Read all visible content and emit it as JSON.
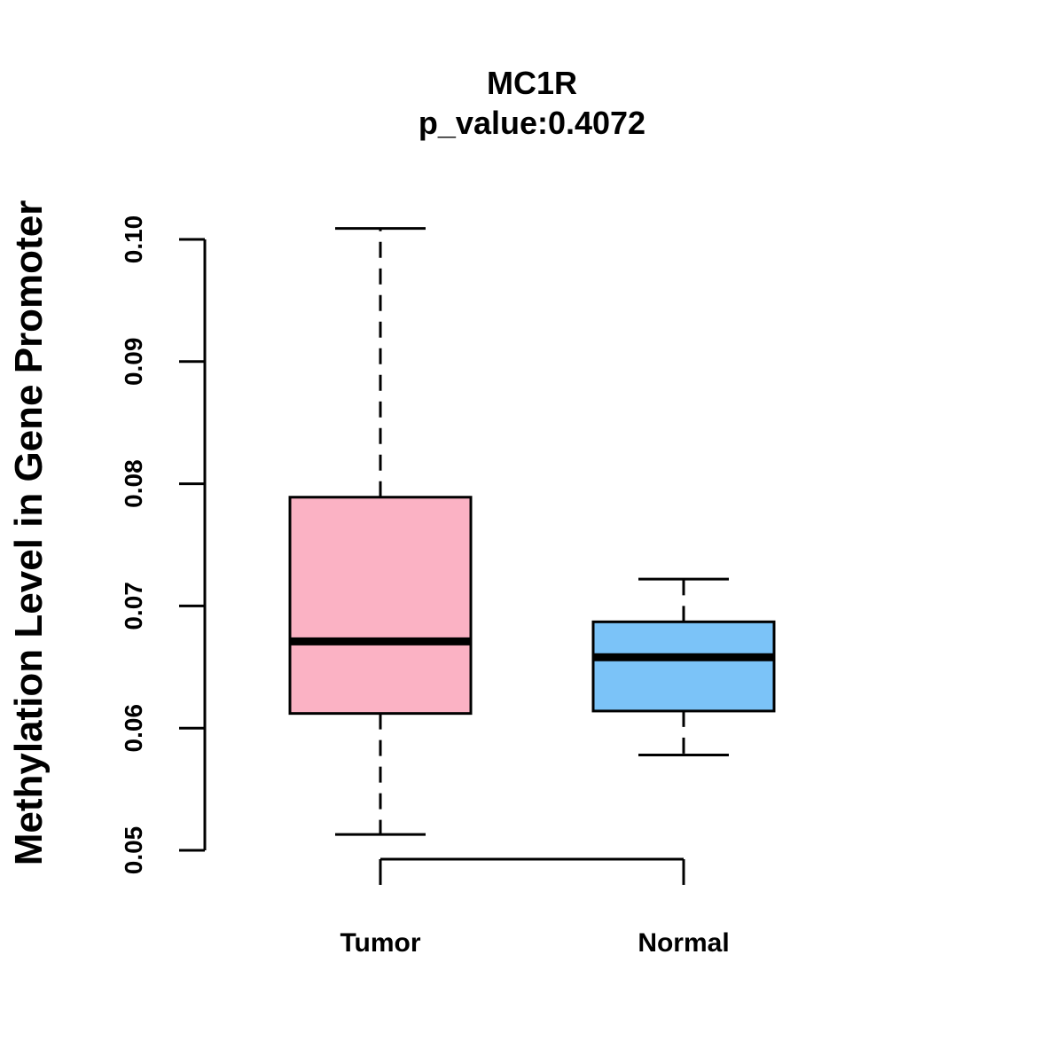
{
  "chart_data": {
    "type": "boxplot",
    "title": "MC1R",
    "subtitle": "p_value:0.4072",
    "xlabel": "",
    "ylabel": "Methylation Level in Gene Promoter",
    "ylim": [
      0.05,
      0.1
    ],
    "yticks": [
      0.05,
      0.06,
      0.07,
      0.08,
      0.09,
      0.1
    ],
    "ytick_labels": [
      "0.05",
      "0.06",
      "0.07",
      "0.08",
      "0.09",
      "0.10"
    ],
    "grid": false,
    "groups": [
      {
        "name": "Tumor",
        "color": "#FBB2C4",
        "whisker_low": 0.0513,
        "q1": 0.0612,
        "median": 0.0671,
        "q3": 0.0789,
        "whisker_high": 0.1009
      },
      {
        "name": "Normal",
        "color": "#7BC3F8",
        "whisker_low": 0.0578,
        "q1": 0.0614,
        "median": 0.0658,
        "q3": 0.0687,
        "whisker_high": 0.0722
      }
    ]
  }
}
